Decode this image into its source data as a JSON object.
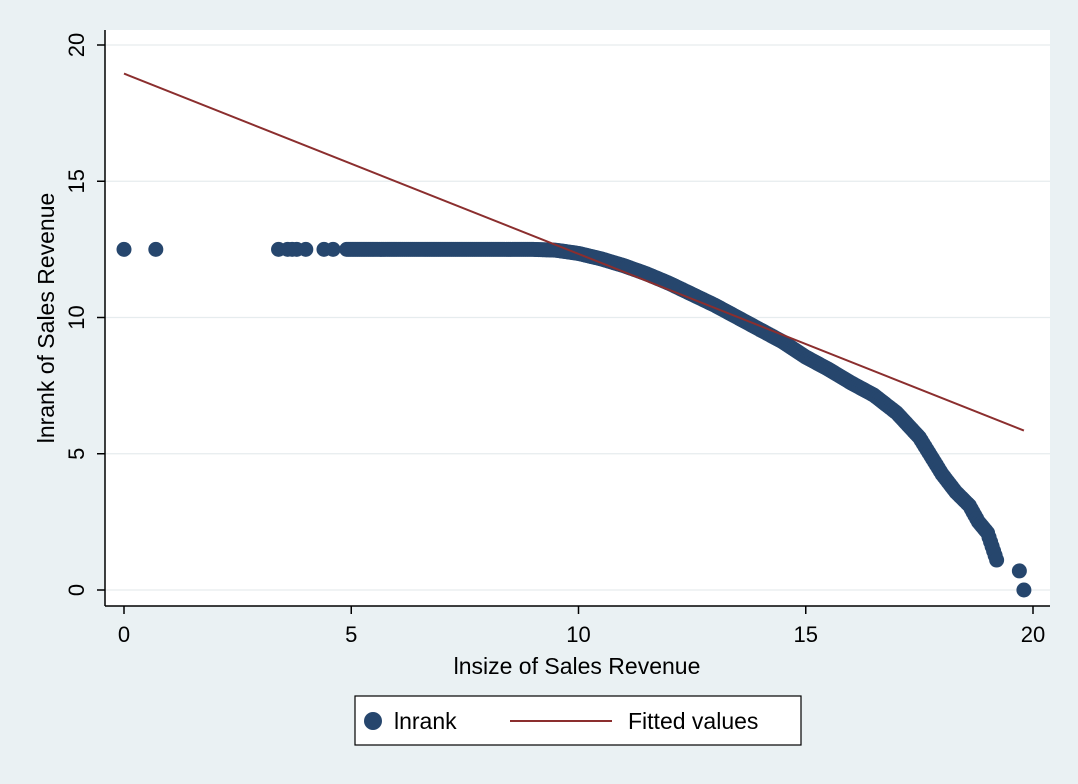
{
  "chart_data": {
    "type": "scatter",
    "xlabel": "lnsize of Sales Revenue",
    "ylabel": "lnrank of Sales Revenue",
    "xlim": [
      -0.4,
      20.3
    ],
    "ylim": [
      -0.6,
      20.5
    ],
    "xticks": [
      0,
      5,
      10,
      15,
      20
    ],
    "yticks": [
      0,
      5,
      10,
      15,
      20
    ],
    "grid": true,
    "legend_position": "bottom",
    "series": [
      {
        "name": "lnrank",
        "kind": "scatter",
        "color": "#26466d",
        "points": [
          [
            0,
            12.5
          ],
          [
            0.7,
            12.5
          ],
          [
            3.4,
            12.5
          ],
          [
            3.6,
            12.5
          ],
          [
            3.7,
            12.5
          ],
          [
            3.8,
            12.5
          ],
          [
            4.0,
            12.5
          ],
          [
            4.4,
            12.5
          ],
          [
            4.6,
            12.5
          ],
          [
            4.9,
            12.5
          ],
          [
            5.1,
            12.5
          ],
          [
            5.3,
            12.5
          ],
          [
            5.5,
            12.5
          ],
          [
            5.8,
            12.5
          ],
          [
            6.0,
            12.5
          ],
          [
            6.3,
            12.5
          ],
          [
            6.6,
            12.5
          ],
          [
            7.0,
            12.5
          ],
          [
            7.5,
            12.5
          ],
          [
            8.0,
            12.5
          ],
          [
            8.5,
            12.5
          ],
          [
            9.0,
            12.5
          ],
          [
            9.5,
            12.47
          ],
          [
            10.0,
            12.35
          ],
          [
            10.5,
            12.15
          ],
          [
            11.0,
            11.9
          ],
          [
            11.5,
            11.6
          ],
          [
            12.0,
            11.25
          ],
          [
            12.5,
            10.85
          ],
          [
            13.0,
            10.45
          ],
          [
            13.5,
            10.0
          ],
          [
            14.0,
            9.55
          ],
          [
            14.5,
            9.1
          ],
          [
            15.0,
            8.55
          ],
          [
            15.5,
            8.1
          ],
          [
            16.0,
            7.6
          ],
          [
            16.5,
            7.15
          ],
          [
            17.0,
            6.5
          ],
          [
            17.5,
            5.6
          ],
          [
            18.0,
            4.25
          ],
          [
            18.3,
            3.6
          ],
          [
            18.6,
            3.1
          ],
          [
            18.8,
            2.5
          ],
          [
            19.0,
            2.1
          ],
          [
            19.1,
            1.6
          ],
          [
            19.2,
            1.1
          ],
          [
            19.7,
            0.7
          ],
          [
            19.8,
            0.0
          ]
        ]
      },
      {
        "name": "Fitted values",
        "kind": "line",
        "color": "#8b2e2e",
        "points": [
          [
            0,
            18.95
          ],
          [
            19.8,
            5.85
          ]
        ]
      }
    ]
  },
  "legend": {
    "items": [
      {
        "label": "lnrank",
        "color": "#26466d",
        "symbol": "circle"
      },
      {
        "label": "Fitted values",
        "color": "#8b2e2e",
        "symbol": "line"
      }
    ]
  }
}
